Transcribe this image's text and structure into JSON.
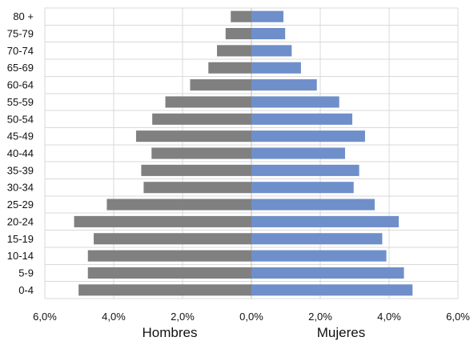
{
  "chart_data": {
    "type": "bar",
    "orientation": "horizontal-pyramid",
    "categories": [
      "80 +",
      "75-79",
      "70-74",
      "65-69",
      "60-64",
      "55-59",
      "50-54",
      "45-49",
      "40-44",
      "35-39",
      "30-34",
      "25-29",
      "20-24",
      "15-19",
      "10-14",
      "5-9",
      "0-4"
    ],
    "series": [
      {
        "name": "Hombres",
        "color": "#808080",
        "values": [
          0.6,
          0.75,
          1.0,
          1.25,
          1.78,
          2.5,
          2.88,
          3.35,
          2.9,
          3.2,
          3.13,
          4.2,
          5.15,
          4.58,
          4.75,
          4.75,
          5.02
        ]
      },
      {
        "name": "Mujeres",
        "color": "#6f8fca",
        "values": [
          0.93,
          0.98,
          1.17,
          1.44,
          1.9,
          2.55,
          2.93,
          3.3,
          2.72,
          3.13,
          2.97,
          3.58,
          4.28,
          3.8,
          3.92,
          4.43,
          4.68
        ]
      }
    ],
    "x_ticks": [
      "6,0%",
      "4,0%",
      "2,0%",
      "0,0%",
      "2,0%",
      "4,0%",
      "6,0%"
    ],
    "xlim": [
      -6,
      6
    ],
    "left_label": "Hombres",
    "right_label": "Mujeres",
    "grid": true
  }
}
